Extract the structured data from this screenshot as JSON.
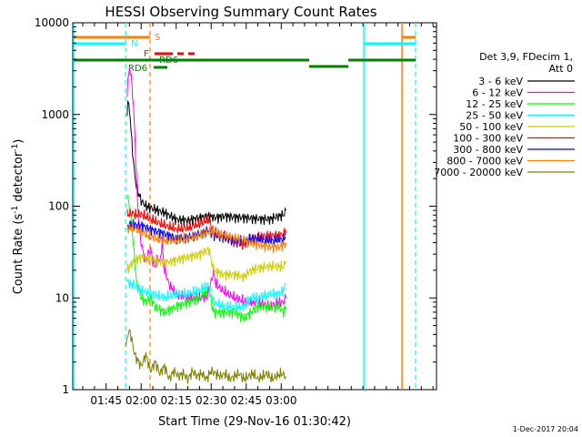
{
  "chart_data": {
    "type": "line",
    "title": "HESSI Observing Summary Count Rates",
    "xlabel": "Start Time (29-Nov-16 01:30:42)",
    "ylabel_main": "Count Rate (s",
    "ylabel_sup1": "-1",
    "ylabel_mid": " detector",
    "ylabel_sup2": "-1",
    "ylabel_end": ")",
    "footer": "1-Dec-2017 20:04",
    "y_scale": "log",
    "ylim": [
      1,
      10000
    ],
    "xlim": [
      30.7,
      186.5
    ],
    "x_ticks": [
      {
        "t": 45,
        "label": "01:45"
      },
      {
        "t": 60,
        "label": "02:00"
      },
      {
        "t": 75,
        "label": "02:15"
      },
      {
        "t": 90,
        "label": "02:30"
      },
      {
        "t": 105,
        "label": "02:45"
      },
      {
        "t": 120,
        "label": "03:00"
      }
    ],
    "y_ticks": [
      {
        "v": 1,
        "label": "1"
      },
      {
        "v": 10,
        "label": "10"
      },
      {
        "v": 100,
        "label": "100"
      },
      {
        "v": 1000,
        "label": "1000"
      },
      {
        "v": 10000,
        "label": "10000"
      }
    ],
    "legend_header": [
      "Det 3,9, FDecim 1,",
      "Att 0"
    ],
    "legend_placement": "right",
    "series": [
      {
        "name": "3 - 6 keV",
        "color": "#000000",
        "points": [
          [
            54,
            1000
          ],
          [
            54.5,
            1400
          ],
          [
            55,
            1200
          ],
          [
            56,
            500
          ],
          [
            57,
            250
          ],
          [
            58,
            160
          ],
          [
            60,
            115
          ],
          [
            62,
            100
          ],
          [
            66,
            92
          ],
          [
            70,
            85
          ],
          [
            75,
            72
          ],
          [
            80,
            70
          ],
          [
            85,
            75
          ],
          [
            89,
            78
          ],
          [
            92,
            75
          ],
          [
            96,
            78
          ],
          [
            100,
            76
          ],
          [
            105,
            75
          ],
          [
            110,
            73
          ],
          [
            115,
            72
          ],
          [
            119,
            78
          ],
          [
            121,
            80
          ],
          [
            122,
            90
          ]
        ]
      },
      {
        "name": "6 - 12 keV",
        "color": "#ff00ff",
        "points": [
          [
            54,
            1800
          ],
          [
            55,
            3300
          ],
          [
            56,
            2200
          ],
          [
            57,
            900
          ],
          [
            58,
            200
          ],
          [
            59,
            60
          ],
          [
            60,
            40
          ],
          [
            61,
            30
          ],
          [
            62,
            25
          ],
          [
            63,
            30
          ],
          [
            64,
            35
          ],
          [
            65,
            25
          ],
          [
            66,
            22
          ],
          [
            67,
            28
          ],
          [
            68,
            24
          ],
          [
            69,
            40
          ],
          [
            70,
            20
          ],
          [
            72,
            14
          ],
          [
            75,
            11
          ],
          [
            80,
            10
          ],
          [
            88,
            10
          ],
          [
            90,
            15
          ],
          [
            91,
            20
          ],
          [
            92,
            14
          ],
          [
            95,
            12
          ],
          [
            100,
            10
          ],
          [
            105,
            9
          ],
          [
            110,
            9
          ],
          [
            115,
            8
          ],
          [
            119,
            9
          ],
          [
            121,
            9
          ],
          [
            122,
            10
          ]
        ]
      },
      {
        "name": "12 - 25 keV",
        "color": "#00ff00",
        "points": [
          [
            54,
            130
          ],
          [
            55,
            100
          ],
          [
            56,
            60
          ],
          [
            57,
            30
          ],
          [
            58,
            15
          ],
          [
            60,
            10
          ],
          [
            62,
            9
          ],
          [
            64,
            10
          ],
          [
            66,
            8
          ],
          [
            70,
            7
          ],
          [
            75,
            8
          ],
          [
            80,
            9
          ],
          [
            85,
            10
          ],
          [
            89,
            12
          ],
          [
            91,
            7
          ],
          [
            95,
            7
          ],
          [
            100,
            7
          ],
          [
            104,
            6
          ],
          [
            107,
            7
          ],
          [
            110,
            8
          ],
          [
            115,
            8
          ],
          [
            119,
            8
          ],
          [
            121,
            7
          ],
          [
            122,
            8
          ]
        ]
      },
      {
        "name": "25 - 50 keV",
        "color": "#00ffff",
        "points": [
          [
            54,
            15
          ],
          [
            56,
            14
          ],
          [
            58,
            13
          ],
          [
            60,
            12
          ],
          [
            65,
            11
          ],
          [
            70,
            10
          ],
          [
            75,
            11
          ],
          [
            80,
            11
          ],
          [
            85,
            12
          ],
          [
            89,
            14
          ],
          [
            91,
            9
          ],
          [
            95,
            8
          ],
          [
            100,
            8
          ],
          [
            104,
            8
          ],
          [
            107,
            10
          ],
          [
            110,
            10
          ],
          [
            115,
            11
          ],
          [
            119,
            11
          ],
          [
            121,
            12
          ],
          [
            122,
            14
          ]
        ]
      },
      {
        "name": "50 - 100 keV",
        "color": "#cccc00",
        "points": [
          [
            54,
            20
          ],
          [
            56,
            24
          ],
          [
            58,
            26
          ],
          [
            60,
            28
          ],
          [
            65,
            26
          ],
          [
            70,
            24
          ],
          [
            75,
            26
          ],
          [
            80,
            28
          ],
          [
            85,
            30
          ],
          [
            89,
            34
          ],
          [
            91,
            20
          ],
          [
            95,
            18
          ],
          [
            100,
            18
          ],
          [
            104,
            17
          ],
          [
            107,
            20
          ],
          [
            110,
            21
          ],
          [
            115,
            22
          ],
          [
            119,
            22
          ],
          [
            121,
            22
          ],
          [
            122,
            25
          ]
        ]
      },
      {
        "name": "100 - 300 keV",
        "color": "#ff0000",
        "points": [
          [
            54,
            80
          ],
          [
            56,
            85
          ],
          [
            58,
            80
          ],
          [
            60,
            82
          ],
          [
            65,
            70
          ],
          [
            70,
            62
          ],
          [
            75,
            56
          ],
          [
            80,
            58
          ],
          [
            85,
            64
          ],
          [
            89,
            72
          ],
          [
            91,
            52
          ],
          [
            95,
            48
          ],
          [
            100,
            40
          ],
          [
            104,
            38
          ],
          [
            107,
            44
          ],
          [
            110,
            46
          ],
          [
            115,
            48
          ],
          [
            119,
            48
          ],
          [
            121,
            50
          ],
          [
            122,
            55
          ]
        ]
      },
      {
        "name": "300 - 800 keV",
        "color": "#0000ff",
        "points": [
          [
            54,
            60
          ],
          [
            56,
            65
          ],
          [
            58,
            62
          ],
          [
            60,
            62
          ],
          [
            65,
            55
          ],
          [
            70,
            50
          ],
          [
            75,
            45
          ],
          [
            80,
            46
          ],
          [
            85,
            50
          ],
          [
            89,
            55
          ],
          [
            91,
            48
          ],
          [
            95,
            46
          ],
          [
            100,
            42
          ],
          [
            104,
            42
          ],
          [
            107,
            44
          ],
          [
            110,
            44
          ],
          [
            115,
            42
          ],
          [
            119,
            43
          ],
          [
            121,
            44
          ],
          [
            122,
            46
          ]
        ]
      },
      {
        "name": "800 - 7000 keV",
        "color": "#ff8000",
        "points": [
          [
            54,
            55
          ],
          [
            56,
            58
          ],
          [
            58,
            56
          ],
          [
            60,
            52
          ],
          [
            65,
            45
          ],
          [
            70,
            42
          ],
          [
            75,
            42
          ],
          [
            80,
            44
          ],
          [
            85,
            48
          ],
          [
            89,
            52
          ],
          [
            91,
            52
          ],
          [
            95,
            48
          ],
          [
            100,
            45
          ],
          [
            104,
            43
          ],
          [
            107,
            40
          ],
          [
            110,
            38
          ],
          [
            115,
            36
          ],
          [
            119,
            36
          ],
          [
            121,
            38
          ],
          [
            122,
            40
          ]
        ]
      },
      {
        "name": "7000 - 20000 keV",
        "color": "#808000",
        "points": [
          [
            53.5,
            3.2
          ],
          [
            55,
            4.5
          ],
          [
            56,
            3.5
          ],
          [
            57,
            2.5
          ],
          [
            58,
            2.2
          ],
          [
            60,
            1.8
          ],
          [
            62,
            2.4
          ],
          [
            64,
            1.6
          ],
          [
            66,
            2
          ],
          [
            68,
            1.5
          ],
          [
            70,
            1.8
          ],
          [
            72,
            1.3
          ],
          [
            74,
            1.6
          ],
          [
            76,
            1.4
          ],
          [
            78,
            1.5
          ],
          [
            80,
            1.3
          ],
          [
            82,
            1.6
          ],
          [
            84,
            1.4
          ],
          [
            86,
            1.5
          ],
          [
            88,
            1.3
          ],
          [
            90,
            1.6
          ],
          [
            92,
            1.5
          ],
          [
            94,
            1.4
          ],
          [
            96,
            1.5
          ],
          [
            98,
            1.3
          ],
          [
            100,
            1.4
          ],
          [
            102,
            1.5
          ],
          [
            104,
            1.3
          ],
          [
            106,
            1.4
          ],
          [
            108,
            1.5
          ],
          [
            110,
            1.3
          ],
          [
            112,
            1.4
          ],
          [
            114,
            1.5
          ],
          [
            116,
            1.3
          ],
          [
            118,
            1.4
          ],
          [
            120,
            1.5
          ],
          [
            122,
            1.4
          ]
        ]
      }
    ],
    "annotations": [
      {
        "label": "S",
        "color": "#ff8000"
      },
      {
        "label": "N",
        "color": "#00ffff"
      },
      {
        "label": "F",
        "color": "#ff0000"
      },
      {
        "label": "RD6",
        "color": "#008000"
      },
      {
        "label": "RD6",
        "color": "#008000"
      }
    ]
  }
}
